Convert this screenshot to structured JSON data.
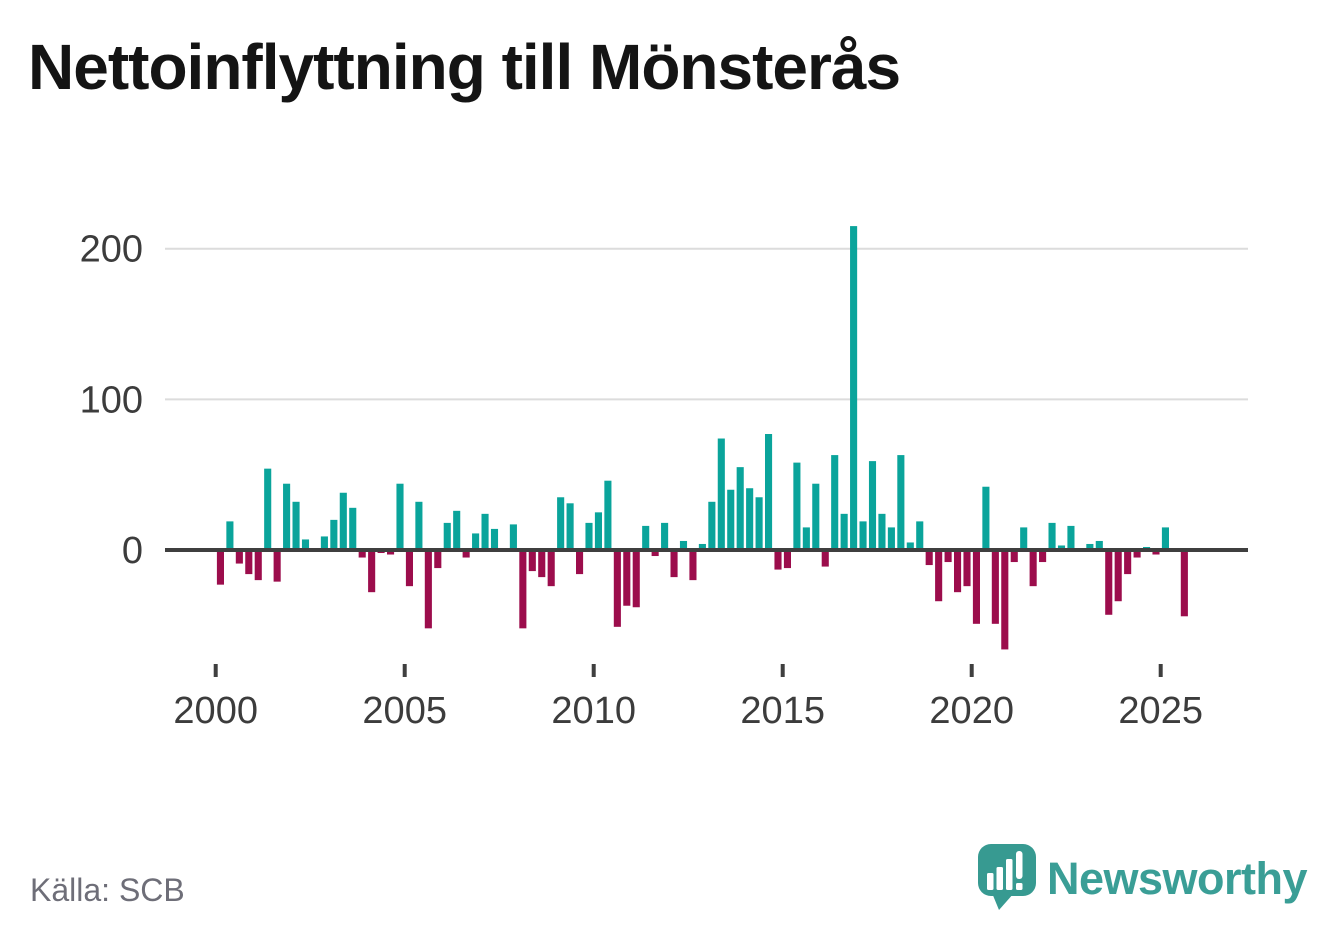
{
  "header": {
    "title": "Nettoinflyttning till Mönsterås"
  },
  "footer": {
    "source_label": "Källa: SCB",
    "brand": "Newsworthy",
    "brand_color": "#3a9e96"
  },
  "chart_data": {
    "type": "bar",
    "title": "Nettoinflyttning till Mönsterås",
    "frequency": "quarterly",
    "xlabel": "",
    "ylabel": "",
    "ylim": [
      -70,
      220
    ],
    "y_ticks": [
      0,
      100,
      200
    ],
    "y_tick_labels": [
      "0",
      "100",
      "200"
    ],
    "x_tick_labels": [
      "2000",
      "2005",
      "2010",
      "2015",
      "2020",
      "2025"
    ],
    "grid": "horizontal",
    "legend": "none",
    "colors": {
      "positive": "#0aa49b",
      "negative": "#9c0d4c",
      "axis": "#3f3f3f",
      "gridline": "#dcdcdc",
      "tick_label": "#3c3c3c"
    },
    "categories": [
      "2000K1",
      "2000K2",
      "2000K3",
      "2000K4",
      "2001K1",
      "2001K2",
      "2001K3",
      "2001K4",
      "2002K1",
      "2002K2",
      "2002K3",
      "2002K4",
      "2003K1",
      "2003K2",
      "2003K3",
      "2003K4",
      "2004K1",
      "2004K2",
      "2004K3",
      "2004K4",
      "2005K1",
      "2005K2",
      "2005K3",
      "2005K4",
      "2006K1",
      "2006K2",
      "2006K3",
      "2006K4",
      "2007K1",
      "2007K2",
      "2007K3",
      "2007K4",
      "2008K1",
      "2008K2",
      "2008K3",
      "2008K4",
      "2009K1",
      "2009K2",
      "2009K3",
      "2009K4",
      "2010K1",
      "2010K2",
      "2010K3",
      "2010K4",
      "2011K1",
      "2011K2",
      "2011K3",
      "2011K4",
      "2012K1",
      "2012K2",
      "2012K3",
      "2012K4",
      "2013K1",
      "2013K2",
      "2013K3",
      "2013K4",
      "2014K1",
      "2014K2",
      "2014K3",
      "2014K4",
      "2015K1",
      "2015K2",
      "2015K3",
      "2015K4",
      "2016K1",
      "2016K2",
      "2016K3",
      "2016K4",
      "2017K1",
      "2017K2",
      "2017K3",
      "2017K4",
      "2018K1",
      "2018K2",
      "2018K3",
      "2018K4",
      "2019K1",
      "2019K2",
      "2019K3",
      "2019K4",
      "2020K1",
      "2020K2",
      "2020K3",
      "2020K4",
      "2021K1",
      "2021K2",
      "2021K3",
      "2021K4",
      "2022K1",
      "2022K2",
      "2022K3",
      "2022K4",
      "2023K1",
      "2023K2",
      "2023K3",
      "2023K4",
      "2024K1",
      "2024K2",
      "2024K3",
      "2024K4",
      "2025K1",
      "2025K2",
      "2025K3"
    ],
    "values": [
      -23,
      19,
      -9,
      -16,
      -20,
      54,
      -21,
      44,
      32,
      7,
      0,
      9,
      20,
      38,
      28,
      -5,
      -28,
      -2,
      -3,
      44,
      -24,
      32,
      -52,
      -12,
      18,
      26,
      -5,
      11,
      24,
      14,
      0,
      17,
      -52,
      -14,
      -18,
      -24,
      35,
      31,
      -16,
      18,
      25,
      46,
      -51,
      -37,
      -38,
      16,
      -4,
      18,
      -18,
      6,
      -20,
      4,
      32,
      74,
      40,
      55,
      41,
      35,
      77,
      -13,
      -12,
      58,
      15,
      44,
      -11,
      63,
      24,
      215,
      19,
      59,
      24,
      15,
      63,
      5,
      19,
      -10,
      -34,
      -8,
      -28,
      -24,
      -49,
      42,
      -49,
      -66,
      -8,
      15,
      -24,
      -8,
      18,
      3,
      16,
      0,
      4,
      6,
      -43,
      -34,
      -16,
      -5,
      2,
      -3,
      15,
      0,
      -44
    ]
  }
}
